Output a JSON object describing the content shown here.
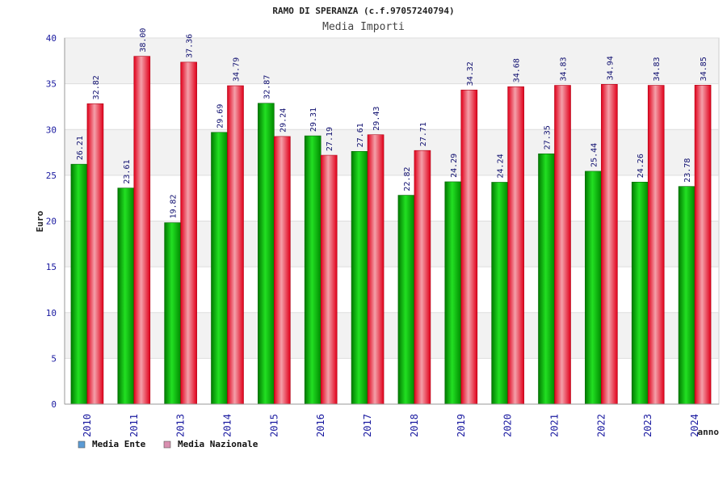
{
  "chart_data": {
    "type": "bar",
    "title": "RAMO DI SPERANZA (c.f.97057240794)",
    "subtitle": "Media Importi",
    "xlabel": "anno",
    "ylabel": "Euro",
    "ylim": [
      0,
      40
    ],
    "yticks": [
      "0",
      "5",
      "10",
      "15",
      "20",
      "25",
      "30",
      "35",
      "40"
    ],
    "grid": true,
    "legend_position": "bottom-left",
    "categories": [
      "2010",
      "2011",
      "2013",
      "2014",
      "2015",
      "2016",
      "2017",
      "2018",
      "2019",
      "2020",
      "2021",
      "2022",
      "2023",
      "2024"
    ],
    "series": [
      {
        "name": "Media Ente",
        "color": "#00c000",
        "legend_color": "#5b9bd5",
        "values": [
          26.21,
          23.61,
          19.82,
          29.69,
          32.87,
          29.31,
          27.61,
          22.82,
          24.29,
          24.24,
          27.35,
          25.44,
          24.26,
          23.78
        ],
        "labels": [
          "26.21",
          "23.61",
          "19.82",
          "29.69",
          "32.87",
          "29.31",
          "27.61",
          "22.82",
          "24.29",
          "24.24",
          "27.35",
          "25.44",
          "24.26",
          "23.78"
        ]
      },
      {
        "name": "Media Nazionale",
        "color": "#e8001a",
        "legend_color": "#d98fb0",
        "values": [
          32.82,
          38.0,
          37.36,
          34.79,
          29.24,
          27.19,
          29.43,
          27.71,
          34.32,
          34.68,
          34.83,
          34.94,
          34.83,
          34.85
        ],
        "labels": [
          "32.82",
          "38.00",
          "37.36",
          "34.79",
          "29.24",
          "27.19",
          "29.43",
          "27.71",
          "34.32",
          "34.68",
          "34.83",
          "34.94",
          "34.83",
          "34.85"
        ]
      }
    ]
  }
}
